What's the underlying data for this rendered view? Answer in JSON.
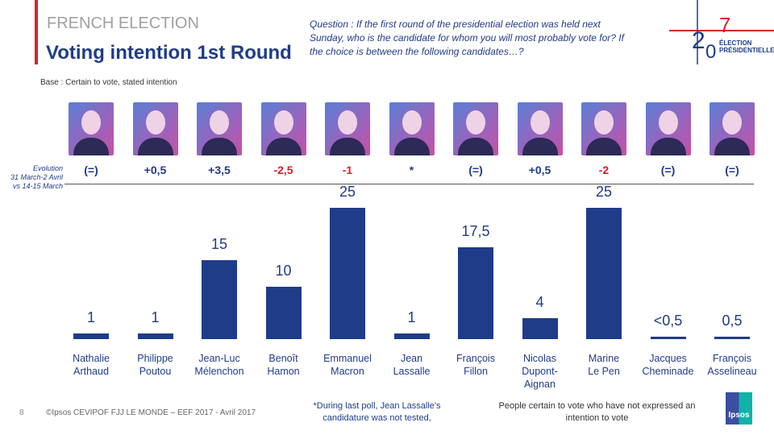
{
  "header": {
    "kicker": "FRENCH ELECTION",
    "title": "Voting intention 1st Round",
    "question": "Question : If the first round of the presidential election was held next Sunday,  who is the candidate for whom you will most probably vote for? If the choice is between the following candidates…?",
    "base": "Base : Certain to vote, stated intention",
    "logo_text": "2017 ÉLECTION PRÉSIDENTIELLE"
  },
  "evolution_label": [
    "Evolution",
    "31 March-2 Avril",
    "vs 14-15 March"
  ],
  "colors": {
    "bar": "#1f3c88",
    "negative": "#d9202a",
    "neutral": "#1f3c88"
  },
  "chart_data": {
    "type": "bar",
    "categories": [
      "Nathalie Arthaud",
      "Philippe Poutou",
      "Jean-Luc Mélenchon",
      "Benoît Hamon",
      "Emmanuel Macron",
      "Jean Lassalle",
      "François Fillon",
      "Nicolas Dupont-Aignan",
      "Marine Le Pen",
      "Jacques Cheminade",
      "François Asselineau"
    ],
    "name_lines": [
      [
        "Nathalie",
        "Arthaud"
      ],
      [
        "Philippe",
        "Poutou"
      ],
      [
        "Jean-Luc",
        "Mélenchon"
      ],
      [
        "Benoît",
        "Hamon"
      ],
      [
        "Emmanuel",
        "Macron"
      ],
      [
        "Jean",
        "Lassalle"
      ],
      [
        "François",
        "Fillon"
      ],
      [
        "Nicolas",
        "Dupont-",
        "Aignan"
      ],
      [
        "Marine",
        "Le Pen"
      ],
      [
        "Jacques",
        "Cheminade"
      ],
      [
        "François",
        "Asselineau"
      ]
    ],
    "values": [
      1,
      1,
      15,
      10,
      25,
      1,
      17.5,
      4,
      25,
      0.5,
      0.5
    ],
    "data_labels": [
      "1",
      "1",
      "15",
      "10",
      "25",
      "1",
      "17,5",
      "4",
      "25",
      "<0,5",
      "0,5"
    ],
    "evolution": [
      "(=)",
      "+0,5",
      "+3,5",
      "-2,5",
      "-1",
      "*",
      "(=)",
      "+0,5",
      "-2",
      "(=)",
      "(=)"
    ],
    "ylim": [
      0,
      25
    ]
  },
  "footer": {
    "page": "8",
    "copyright": "©Ipsos  CEVIPOF FJJ LE MONDE – EEF 2017 - Avril 2017",
    "note": "*During last poll, Jean Lassalle's candidature was not tested,",
    "note2": "People certain to vote  who have not expressed an intention to vote",
    "ipsos": "Ipsos"
  }
}
